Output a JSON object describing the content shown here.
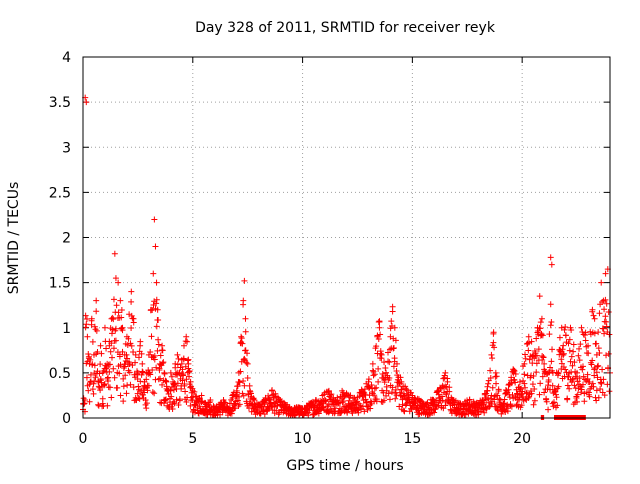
{
  "chart_data": {
    "type": "scatter",
    "title": "Day 328 of 2011, SRMTID for receiver reyk",
    "xlabel": "GPS time / hours",
    "ylabel": "SRMTID / TECUs",
    "xlim": [
      0,
      24
    ],
    "ylim": [
      0,
      4
    ],
    "xticks": [
      0,
      5,
      10,
      15,
      20
    ],
    "yticks": [
      0,
      0.5,
      1,
      1.5,
      2,
      2.5,
      3,
      3.5,
      4
    ],
    "ytick_labels": [
      "0",
      "0.5",
      "1",
      "1.5",
      "2",
      "2.5",
      "3",
      "3.5",
      "4"
    ],
    "grid": true,
    "marker": "plus",
    "color": "#ff0000",
    "series": [
      {
        "name": "reyk",
        "points": [
          [
            0.1,
            3.55
          ],
          [
            0.15,
            3.5
          ],
          [
            0.2,
            0.9
          ],
          [
            0.3,
            0.6
          ],
          [
            0.4,
            1.1
          ],
          [
            0.5,
            0.7
          ],
          [
            0.6,
            1.3
          ],
          [
            0.7,
            0.4
          ],
          [
            0.8,
            0.8
          ],
          [
            0.9,
            0.5
          ],
          [
            1.0,
            1.0
          ],
          [
            1.1,
            0.6
          ],
          [
            1.2,
            0.8
          ],
          [
            1.3,
            1.1
          ],
          [
            1.45,
            1.82
          ],
          [
            1.5,
            1.55
          ],
          [
            1.6,
            1.5
          ],
          [
            1.7,
            1.3
          ],
          [
            1.8,
            1.0
          ],
          [
            1.9,
            0.7
          ],
          [
            2.0,
            0.9
          ],
          [
            2.1,
            1.15
          ],
          [
            2.2,
            1.4
          ],
          [
            2.3,
            1.1
          ],
          [
            2.4,
            0.7
          ],
          [
            2.5,
            0.5
          ],
          [
            2.6,
            0.8
          ],
          [
            2.7,
            0.6
          ],
          [
            2.8,
            0.4
          ],
          [
            2.9,
            0.5
          ],
          [
            3.0,
            0.7
          ],
          [
            3.1,
            1.2
          ],
          [
            3.2,
            1.6
          ],
          [
            3.25,
            2.2
          ],
          [
            3.3,
            1.9
          ],
          [
            3.35,
            1.5
          ],
          [
            3.4,
            1.2
          ],
          [
            3.5,
            0.6
          ],
          [
            3.6,
            0.8
          ],
          [
            3.7,
            0.5
          ],
          [
            3.8,
            0.4
          ],
          [
            3.9,
            0.3
          ],
          [
            4.0,
            0.5
          ],
          [
            4.1,
            0.4
          ],
          [
            4.2,
            0.6
          ],
          [
            4.3,
            0.7
          ],
          [
            4.4,
            0.5
          ],
          [
            4.5,
            0.6
          ],
          [
            4.6,
            0.8
          ],
          [
            4.7,
            0.9
          ],
          [
            4.8,
            0.6
          ],
          [
            4.9,
            0.4
          ],
          [
            5.0,
            0.3
          ],
          [
            5.2,
            0.2
          ],
          [
            5.4,
            0.25
          ],
          [
            5.6,
            0.15
          ],
          [
            5.8,
            0.2
          ],
          [
            6.0,
            0.1
          ],
          [
            6.2,
            0.15
          ],
          [
            6.4,
            0.2
          ],
          [
            6.6,
            0.1
          ],
          [
            6.8,
            0.25
          ],
          [
            7.0,
            0.3
          ],
          [
            7.1,
            0.5
          ],
          [
            7.2,
            0.9
          ],
          [
            7.3,
            1.3
          ],
          [
            7.35,
            1.52
          ],
          [
            7.4,
            1.1
          ],
          [
            7.5,
            0.6
          ],
          [
            7.6,
            0.3
          ],
          [
            7.8,
            0.2
          ],
          [
            8.0,
            0.15
          ],
          [
            8.3,
            0.2
          ],
          [
            8.6,
            0.3
          ],
          [
            8.9,
            0.2
          ],
          [
            9.2,
            0.15
          ],
          [
            9.5,
            0.1
          ],
          [
            9.8,
            0.12
          ],
          [
            10.0,
            0.1
          ],
          [
            10.3,
            0.15
          ],
          [
            10.6,
            0.2
          ],
          [
            10.9,
            0.25
          ],
          [
            11.2,
            0.3
          ],
          [
            11.5,
            0.2
          ],
          [
            11.8,
            0.3
          ],
          [
            12.1,
            0.25
          ],
          [
            12.4,
            0.2
          ],
          [
            12.7,
            0.3
          ],
          [
            13.0,
            0.4
          ],
          [
            13.2,
            0.6
          ],
          [
            13.4,
            0.9
          ],
          [
            13.5,
            1.0
          ],
          [
            13.6,
            0.7
          ],
          [
            13.8,
            0.5
          ],
          [
            14.0,
            0.9
          ],
          [
            14.1,
            1.18
          ],
          [
            14.2,
            1.0
          ],
          [
            14.3,
            0.6
          ],
          [
            14.5,
            0.4
          ],
          [
            14.8,
            0.3
          ],
          [
            15.0,
            0.25
          ],
          [
            15.3,
            0.2
          ],
          [
            15.6,
            0.15
          ],
          [
            15.9,
            0.2
          ],
          [
            16.2,
            0.3
          ],
          [
            16.5,
            0.5
          ],
          [
            16.6,
            0.4
          ],
          [
            16.8,
            0.2
          ],
          [
            17.2,
            0.15
          ],
          [
            17.6,
            0.2
          ],
          [
            18.0,
            0.15
          ],
          [
            18.4,
            0.3
          ],
          [
            18.6,
            0.7
          ],
          [
            18.7,
            0.95
          ],
          [
            18.8,
            0.5
          ],
          [
            19.0,
            0.2
          ],
          [
            19.3,
            0.3
          ],
          [
            19.6,
            0.5
          ],
          [
            19.9,
            0.4
          ],
          [
            20.1,
            0.6
          ],
          [
            20.3,
            0.9
          ],
          [
            20.5,
            0.7
          ],
          [
            20.7,
            1.0
          ],
          [
            20.8,
            1.35
          ],
          [
            20.9,
            1.1
          ],
          [
            21.0,
            0.6
          ],
          [
            21.2,
            0.4
          ],
          [
            21.3,
            1.78
          ],
          [
            21.35,
            1.7
          ],
          [
            21.4,
            0.5
          ],
          [
            21.5,
            0.3
          ],
          [
            21.8,
            1.0
          ],
          [
            22.2,
            1.0
          ],
          [
            22.5,
            0.5
          ],
          [
            22.7,
            1.0
          ],
          [
            23.0,
            0.8
          ],
          [
            23.2,
            1.2
          ],
          [
            23.3,
            1.1
          ],
          [
            23.4,
            0.7
          ],
          [
            23.6,
            1.5
          ],
          [
            23.7,
            1.3
          ],
          [
            23.8,
            1.6
          ],
          [
            23.9,
            1.65
          ],
          [
            24.0,
            0.5
          ]
        ]
      }
    ],
    "zero_segments": [
      [
        20.85,
        21.0
      ],
      [
        21.45,
        22.9
      ]
    ]
  }
}
